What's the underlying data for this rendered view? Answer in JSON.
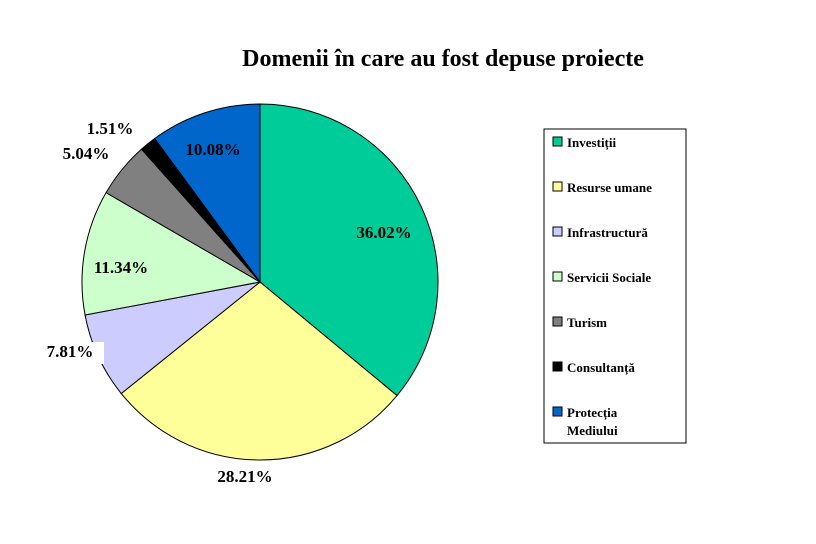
{
  "chart_data": {
    "type": "pie",
    "title": "Domenii în care au fost depuse proiecte",
    "legend_position": "right",
    "slices": [
      {
        "name": "Investiții",
        "value": 36.02,
        "label": "36.02%",
        "color": "#00CC99"
      },
      {
        "name": "Resurse umane",
        "value": 28.21,
        "label": "28.21%",
        "color": "#FFFF99"
      },
      {
        "name": "Infrastructură",
        "value": 7.81,
        "label": "7.81%",
        "color": "#CCCCFF"
      },
      {
        "name": "Servicii Sociale",
        "value": 11.34,
        "label": "11.34%",
        "color": "#CCFFCC"
      },
      {
        "name": "Turism",
        "value": 5.04,
        "label": "5.04%",
        "color": "#808080"
      },
      {
        "name": "Consultanță",
        "value": 1.51,
        "label": "1.51%",
        "color": "#000000"
      },
      {
        "name": "Protecția Mediului",
        "value": 10.08,
        "label": "10.08%",
        "color": "#0066CC"
      }
    ]
  }
}
